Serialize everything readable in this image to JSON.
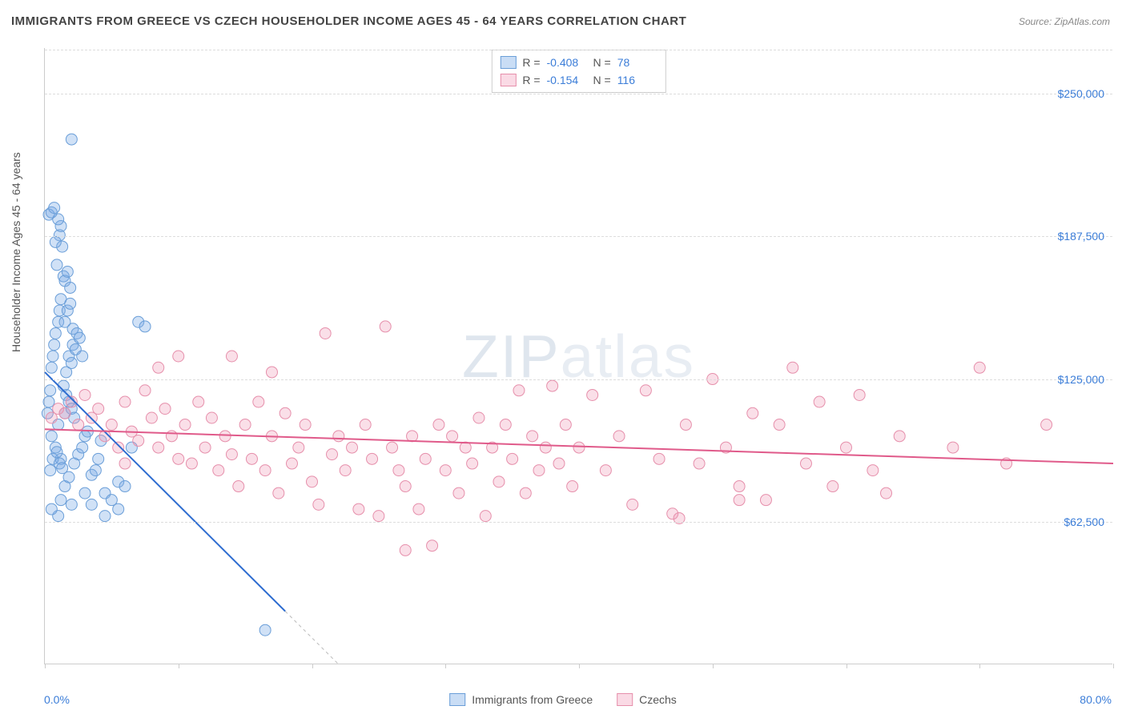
{
  "title": "IMMIGRANTS FROM GREECE VS CZECH HOUSEHOLDER INCOME AGES 45 - 64 YEARS CORRELATION CHART",
  "source": "Source: ZipAtlas.com",
  "watermark": "ZIPatlas",
  "y_axis_label": "Householder Income Ages 45 - 64 years",
  "x_start": "0.0%",
  "x_end": "80.0%",
  "y_ticks": [
    {
      "label": "$250,000",
      "v": 250000
    },
    {
      "label": "$187,500",
      "v": 187500
    },
    {
      "label": "$125,000",
      "v": 125000
    },
    {
      "label": "$62,500",
      "v": 62500
    }
  ],
  "x_tick_positions": [
    0,
    10,
    20,
    30,
    40,
    50,
    60,
    70,
    80
  ],
  "chart": {
    "type": "scatter",
    "xlim": [
      0,
      80
    ],
    "ylim": [
      0,
      270000
    ],
    "background_color": "#ffffff",
    "grid_color": "#dddddd",
    "marker_radius": 7,
    "series": [
      {
        "name": "Immigrants from Greece",
        "color_fill": "rgba(120,170,230,0.35)",
        "color_stroke": "#6a9ed8",
        "R": "-0.408",
        "N": "78",
        "trend": {
          "x1": 0,
          "y1": 128000,
          "x2": 22,
          "y2": 0,
          "color": "#2d6cd0",
          "width": 2,
          "dash_after_x": 18
        },
        "points": [
          [
            0.2,
            110000
          ],
          [
            0.3,
            115000
          ],
          [
            0.4,
            120000
          ],
          [
            0.5,
            130000
          ],
          [
            0.6,
            135000
          ],
          [
            0.7,
            140000
          ],
          [
            0.8,
            145000
          ],
          [
            1.0,
            150000
          ],
          [
            1.1,
            155000
          ],
          [
            1.2,
            160000
          ],
          [
            0.5,
            100000
          ],
          [
            0.8,
            95000
          ],
          [
            1.0,
            105000
          ],
          [
            1.2,
            90000
          ],
          [
            1.5,
            110000
          ],
          [
            1.6,
            128000
          ],
          [
            1.8,
            135000
          ],
          [
            2.0,
            132000
          ],
          [
            2.1,
            140000
          ],
          [
            2.3,
            138000
          ],
          [
            0.9,
            175000
          ],
          [
            1.3,
            183000
          ],
          [
            1.4,
            170000
          ],
          [
            1.1,
            188000
          ],
          [
            1.2,
            192000
          ],
          [
            1.0,
            195000
          ],
          [
            0.8,
            185000
          ],
          [
            1.5,
            168000
          ],
          [
            1.7,
            172000
          ],
          [
            1.9,
            165000
          ],
          [
            1.0,
            65000
          ],
          [
            1.2,
            72000
          ],
          [
            1.5,
            78000
          ],
          [
            1.8,
            82000
          ],
          [
            2.0,
            70000
          ],
          [
            2.2,
            88000
          ],
          [
            2.5,
            92000
          ],
          [
            2.8,
            95000
          ],
          [
            3.0,
            100000
          ],
          [
            3.2,
            102000
          ],
          [
            3.5,
            83000
          ],
          [
            3.8,
            85000
          ],
          [
            4.0,
            90000
          ],
          [
            4.2,
            98000
          ],
          [
            4.5,
            75000
          ],
          [
            5.0,
            72000
          ],
          [
            5.5,
            80000
          ],
          [
            6.0,
            78000
          ],
          [
            6.5,
            95000
          ],
          [
            7.0,
            150000
          ],
          [
            7.5,
            148000
          ],
          [
            0.3,
            197000
          ],
          [
            0.5,
            198000
          ],
          [
            0.7,
            200000
          ],
          [
            1.5,
            150000
          ],
          [
            1.7,
            155000
          ],
          [
            1.9,
            158000
          ],
          [
            2.1,
            147000
          ],
          [
            2.4,
            145000
          ],
          [
            2.6,
            143000
          ],
          [
            0.4,
            85000
          ],
          [
            0.6,
            90000
          ],
          [
            0.9,
            93000
          ],
          [
            1.1,
            88000
          ],
          [
            1.3,
            86000
          ],
          [
            1.4,
            122000
          ],
          [
            1.6,
            118000
          ],
          [
            1.8,
            115000
          ],
          [
            2.0,
            112000
          ],
          [
            2.2,
            108000
          ],
          [
            2.0,
            230000
          ],
          [
            0.5,
            68000
          ],
          [
            4.5,
            65000
          ],
          [
            5.5,
            68000
          ],
          [
            16.5,
            15000
          ],
          [
            3.0,
            75000
          ],
          [
            3.5,
            70000
          ],
          [
            2.8,
            135000
          ]
        ]
      },
      {
        "name": "Czechs",
        "color_fill": "rgba(240,150,180,0.30)",
        "color_stroke": "#e68fab",
        "R": "-0.154",
        "N": "116",
        "trend": {
          "x1": 0,
          "y1": 103000,
          "x2": 80,
          "y2": 88000,
          "color": "#e05a8a",
          "width": 2
        },
        "points": [
          [
            0.5,
            108000
          ],
          [
            1.0,
            112000
          ],
          [
            1.5,
            110000
          ],
          [
            2.0,
            115000
          ],
          [
            2.5,
            105000
          ],
          [
            3.0,
            118000
          ],
          [
            3.5,
            108000
          ],
          [
            4.0,
            112000
          ],
          [
            4.5,
            100000
          ],
          [
            5.0,
            105000
          ],
          [
            5.5,
            95000
          ],
          [
            6.0,
            115000
          ],
          [
            6.5,
            102000
          ],
          [
            7.0,
            98000
          ],
          [
            7.5,
            120000
          ],
          [
            8.0,
            108000
          ],
          [
            8.5,
            95000
          ],
          [
            9.0,
            112000
          ],
          [
            9.5,
            100000
          ],
          [
            10.0,
            90000
          ],
          [
            10.5,
            105000
          ],
          [
            11.0,
            88000
          ],
          [
            11.5,
            115000
          ],
          [
            12.0,
            95000
          ],
          [
            12.5,
            108000
          ],
          [
            13.0,
            85000
          ],
          [
            13.5,
            100000
          ],
          [
            14.0,
            92000
          ],
          [
            14.5,
            78000
          ],
          [
            15.0,
            105000
          ],
          [
            15.5,
            90000
          ],
          [
            16.0,
            115000
          ],
          [
            16.5,
            85000
          ],
          [
            17.0,
            100000
          ],
          [
            17.5,
            75000
          ],
          [
            18.0,
            110000
          ],
          [
            18.5,
            88000
          ],
          [
            19.0,
            95000
          ],
          [
            19.5,
            105000
          ],
          [
            20.0,
            80000
          ],
          [
            20.5,
            70000
          ],
          [
            21.0,
            145000
          ],
          [
            21.5,
            92000
          ],
          [
            22.0,
            100000
          ],
          [
            22.5,
            85000
          ],
          [
            23.0,
            95000
          ],
          [
            23.5,
            68000
          ],
          [
            24.0,
            105000
          ],
          [
            24.5,
            90000
          ],
          [
            25.0,
            65000
          ],
          [
            25.5,
            148000
          ],
          [
            26.0,
            95000
          ],
          [
            26.5,
            85000
          ],
          [
            27.0,
            78000
          ],
          [
            27.5,
            100000
          ],
          [
            28.0,
            68000
          ],
          [
            28.5,
            90000
          ],
          [
            29.0,
            52000
          ],
          [
            29.5,
            105000
          ],
          [
            30.0,
            85000
          ],
          [
            30.5,
            100000
          ],
          [
            31.0,
            75000
          ],
          [
            31.5,
            95000
          ],
          [
            32.0,
            88000
          ],
          [
            32.5,
            108000
          ],
          [
            33.0,
            65000
          ],
          [
            33.5,
            95000
          ],
          [
            34.0,
            80000
          ],
          [
            34.5,
            105000
          ],
          [
            35.0,
            90000
          ],
          [
            35.5,
            120000
          ],
          [
            36.0,
            75000
          ],
          [
            36.5,
            100000
          ],
          [
            37.0,
            85000
          ],
          [
            37.5,
            95000
          ],
          [
            38.0,
            122000
          ],
          [
            38.5,
            88000
          ],
          [
            39.0,
            105000
          ],
          [
            39.5,
            78000
          ],
          [
            40.0,
            95000
          ],
          [
            41.0,
            118000
          ],
          [
            42.0,
            85000
          ],
          [
            43.0,
            100000
          ],
          [
            44.0,
            70000
          ],
          [
            45.0,
            120000
          ],
          [
            46.0,
            90000
          ],
          [
            47.0,
            66000
          ],
          [
            47.5,
            64000
          ],
          [
            48.0,
            105000
          ],
          [
            49.0,
            88000
          ],
          [
            50.0,
            125000
          ],
          [
            51.0,
            95000
          ],
          [
            52.0,
            78000
          ],
          [
            53.0,
            110000
          ],
          [
            54.0,
            72000
          ],
          [
            55.0,
            105000
          ],
          [
            56.0,
            130000
          ],
          [
            57.0,
            88000
          ],
          [
            58.0,
            115000
          ],
          [
            59.0,
            78000
          ],
          [
            60.0,
            95000
          ],
          [
            61.0,
            118000
          ],
          [
            62.0,
            85000
          ],
          [
            63.0,
            75000
          ],
          [
            64.0,
            100000
          ],
          [
            68.0,
            95000
          ],
          [
            70.0,
            130000
          ],
          [
            72.0,
            88000
          ],
          [
            75.0,
            105000
          ],
          [
            52.0,
            72000
          ],
          [
            6.0,
            88000
          ],
          [
            8.5,
            130000
          ],
          [
            10.0,
            135000
          ],
          [
            14.0,
            135000
          ],
          [
            17.0,
            128000
          ],
          [
            27.0,
            50000
          ]
        ]
      }
    ]
  },
  "bottom_legend": [
    {
      "label": "Immigrants from Greece",
      "class": "sw-blue"
    },
    {
      "label": "Czechs",
      "class": "sw-pink"
    }
  ]
}
